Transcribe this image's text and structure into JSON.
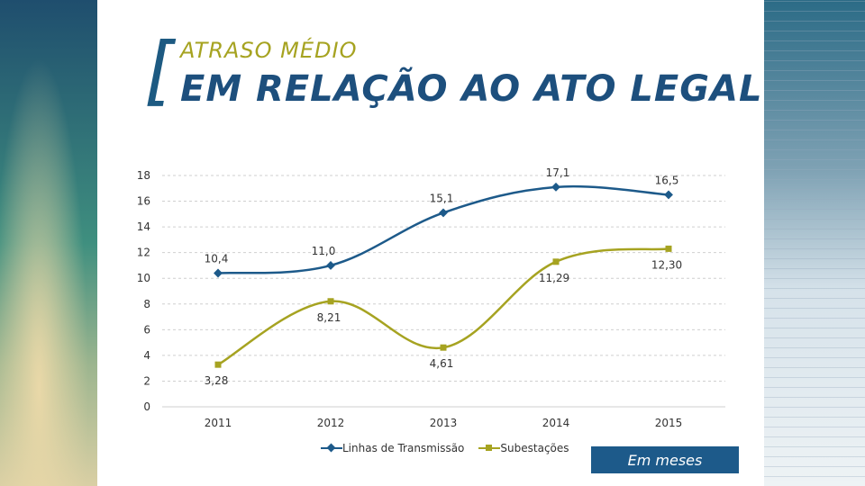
{
  "header": {
    "bracket": "[",
    "subtitle": "ATRASO MÉDIO",
    "title": "EM RELAÇÃO AO ATO LEGAL"
  },
  "unit_label": "Em meses",
  "colors": {
    "series1": "#1d5a8a",
    "series2": "#a6a321",
    "grid": "#cfcfcf"
  },
  "chart_data": {
    "type": "line",
    "title": "EM RELAÇÃO AO ATO LEGAL",
    "xlabel": "",
    "ylabel": "",
    "categories": [
      "2011",
      "2012",
      "2013",
      "2014",
      "2015"
    ],
    "yticks": [
      0,
      2,
      4,
      6,
      8,
      10,
      12,
      14,
      16,
      18
    ],
    "ylim": [
      0,
      18
    ],
    "grid": true,
    "legend_position": "bottom",
    "series": [
      {
        "name": "Linhas de Transmissão",
        "values": [
          10.4,
          11.0,
          15.1,
          17.1,
          16.5
        ],
        "labels": [
          "10,4",
          "11,0",
          "15,1",
          "17,1",
          "16,5"
        ],
        "marker": "diamond",
        "color": "#1d5a8a"
      },
      {
        "name": "Subestações",
        "values": [
          3.28,
          8.21,
          4.61,
          11.29,
          12.3
        ],
        "labels": [
          "3,28",
          "8,21",
          "4,61",
          "11,29",
          "12,30"
        ],
        "marker": "square",
        "color": "#a6a321"
      }
    ]
  }
}
